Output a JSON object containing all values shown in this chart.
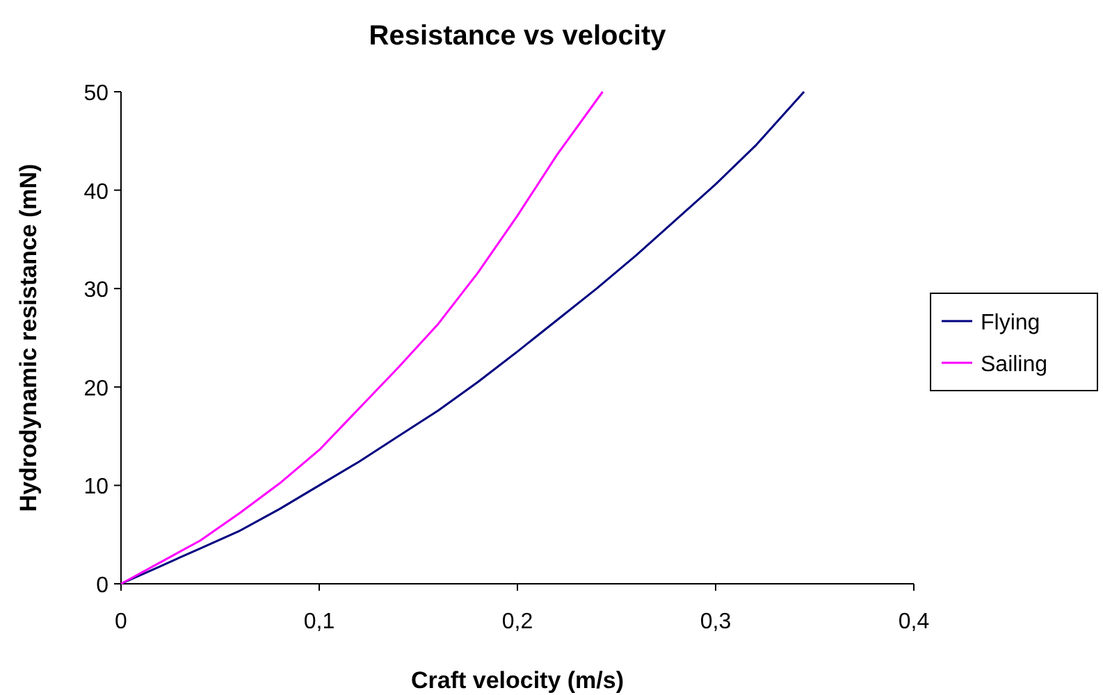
{
  "chart_data": {
    "type": "line",
    "title": "Resistance vs velocity",
    "xlabel": "Craft velocity (m/s)",
    "ylabel": "Hydrodynamic resistance (mN)",
    "xlim": [
      0,
      0.4
    ],
    "xticks": [
      {
        "value": 0,
        "label": "0"
      },
      {
        "value": 0.1,
        "label": "0,1"
      },
      {
        "value": 0.2,
        "label": "0,2"
      },
      {
        "value": 0.3,
        "label": "0,3"
      },
      {
        "value": 0.4,
        "label": "0,4"
      }
    ],
    "ylim": [
      0,
      50
    ],
    "yticks": [
      0,
      10,
      20,
      30,
      40,
      50
    ],
    "grid": false,
    "legend": "right",
    "marker": "none",
    "line_style": "solid",
    "series": [
      {
        "name": "Flying",
        "color": "#000080",
        "x": [
          0,
          0.02,
          0.04,
          0.06,
          0.08,
          0.1,
          0.12,
          0.14,
          0.16,
          0.18,
          0.2,
          0.22,
          0.24,
          0.26,
          0.28,
          0.3,
          0.32,
          0.3446
        ],
        "values": [
          0,
          1.8,
          3.6,
          5.4,
          7.6,
          10,
          12.4,
          15,
          17.6,
          20.5,
          23.6,
          26.8,
          30,
          33.4,
          37,
          40.6,
          44.5,
          50
        ]
      },
      {
        "name": "Sailing",
        "color": "#ff00ff",
        "x": [
          0,
          0.02,
          0.04,
          0.06,
          0.08,
          0.1,
          0.12,
          0.14,
          0.16,
          0.18,
          0.2,
          0.22,
          0.243
        ],
        "values": [
          0,
          2.2,
          4.4,
          7.2,
          10.2,
          13.6,
          17.8,
          22,
          26.4,
          31.6,
          37.4,
          43.6,
          50
        ]
      }
    ]
  }
}
